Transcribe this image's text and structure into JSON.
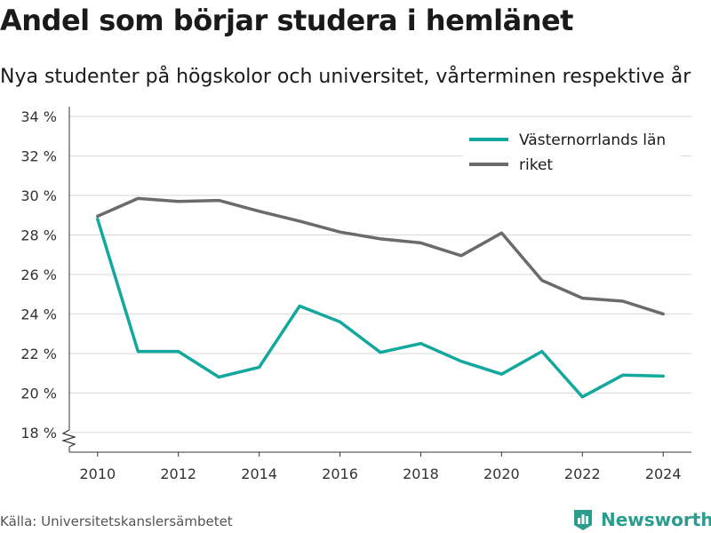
{
  "title": "Andel som börjar studera i hemlänet",
  "subtitle": "Nya studenter på högskolor och universitet, vårterminen respektive år",
  "source": "Källa: Universitetskanslersämbetet",
  "brand": {
    "name": "Newsworthy",
    "color": "#2a9d8f",
    "icon": "bar-chart-logo-icon"
  },
  "chart_data": {
    "type": "line",
    "x": [
      2010,
      2011,
      2012,
      2013,
      2014,
      2015,
      2016,
      2017,
      2018,
      2019,
      2020,
      2021,
      2022,
      2023,
      2024
    ],
    "xticks": [
      2010,
      2012,
      2014,
      2016,
      2018,
      2020,
      2022,
      2024
    ],
    "yticks": [
      18,
      20,
      22,
      24,
      26,
      28,
      30,
      32,
      34
    ],
    "ytick_labels": [
      "18 %",
      "20 %",
      "22 %",
      "24 %",
      "26 %",
      "28 %",
      "30 %",
      "32 %",
      "34 %"
    ],
    "ylim": [
      17,
      34.5
    ],
    "xlim": [
      2009.3,
      2024.7
    ],
    "y_axis_break": true,
    "grid": "horizontal",
    "legend_position": "top-right",
    "series": [
      {
        "name": "Västernorrlands län",
        "color": "#12a89d",
        "values": [
          28.8,
          22.1,
          22.1,
          20.8,
          21.3,
          24.4,
          23.6,
          22.05,
          22.5,
          21.6,
          20.95,
          22.1,
          19.8,
          20.9,
          20.85
        ]
      },
      {
        "name": "riket",
        "color": "#6b6b6b",
        "values": [
          28.95,
          29.85,
          29.7,
          29.75,
          29.2,
          28.7,
          28.15,
          27.8,
          27.6,
          26.95,
          28.1,
          25.7,
          24.8,
          24.65,
          24.0
        ]
      }
    ]
  }
}
